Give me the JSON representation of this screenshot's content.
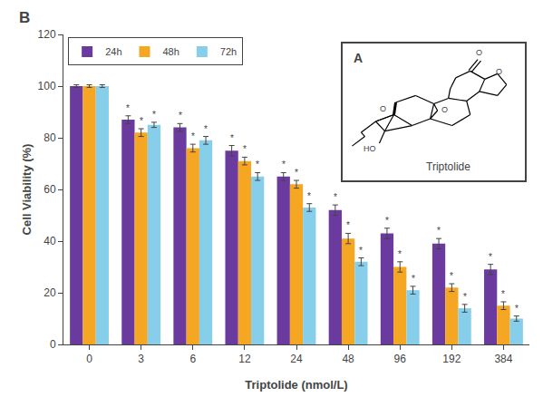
{
  "chart_data": {
    "type": "bar",
    "xlabel": "Triptolide (nmol/L)",
    "ylabel": "Cell Viability (%)",
    "categories": [
      "0",
      "3",
      "6",
      "12",
      "24",
      "48",
      "96",
      "192",
      "384"
    ],
    "series": [
      {
        "name": "24h",
        "color": "#6b3a9e",
        "values": [
          100,
          87,
          84,
          75,
          65,
          52,
          43,
          39,
          29
        ],
        "errors": [
          0.5,
          1.5,
          1.5,
          2.0,
          1.5,
          2.0,
          2.0,
          2.0,
          2.0
        ],
        "annotations": [
          null,
          "*",
          "*",
          "*",
          "*",
          "*",
          "*",
          "*",
          "*"
        ]
      },
      {
        "name": "48h",
        "color": "#f5a623",
        "values": [
          100,
          82,
          76,
          71,
          62,
          41,
          30,
          22,
          15
        ],
        "errors": [
          0.5,
          1.5,
          1.5,
          1.5,
          1.5,
          2.0,
          2.0,
          1.5,
          1.5
        ],
        "annotations": [
          null,
          "*",
          "*",
          "*",
          "*",
          "*",
          "*",
          "*",
          "*"
        ]
      },
      {
        "name": "72h",
        "color": "#87ceeb",
        "values": [
          100,
          85,
          79,
          65,
          53,
          32,
          21,
          14,
          10
        ],
        "errors": [
          0.5,
          1.0,
          1.5,
          1.5,
          1.5,
          1.5,
          1.5,
          1.5,
          1.0
        ],
        "annotations": [
          null,
          "*",
          "*",
          "*",
          "*",
          "*",
          "*",
          "*",
          "*"
        ]
      }
    ],
    "ylim": [
      0,
      120
    ],
    "yticks": [
      0,
      20,
      40,
      60,
      80,
      100,
      120
    ],
    "grid": false,
    "legend": "upper left",
    "annotations": [
      "B",
      "A",
      "Triptolide",
      "O",
      "HO",
      "O",
      "O",
      "O"
    ]
  }
}
